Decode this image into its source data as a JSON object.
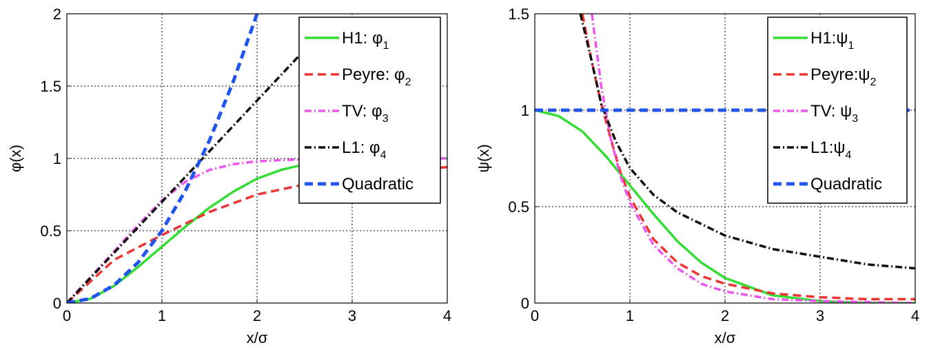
{
  "chart_data": [
    {
      "type": "line",
      "xlabel": "x/σ",
      "ylabel": "φ(x)",
      "xlim": [
        0,
        4
      ],
      "ylim": [
        0,
        2
      ],
      "xticks": [
        "0",
        "1",
        "2",
        "3",
        "4"
      ],
      "yticks": [
        "0",
        "0.5",
        "1",
        "1.5",
        "2"
      ],
      "grid": true,
      "legend_position": "top-right",
      "series": [
        {
          "name": "H1: φ",
          "sub": "1",
          "color": "#33dd33",
          "style": "solid",
          "x": [
            0,
            0.25,
            0.5,
            0.75,
            1,
            1.25,
            1.5,
            1.75,
            2,
            2.25,
            2.5,
            2.75,
            3,
            3.5,
            4
          ],
          "y": [
            0,
            0.03,
            0.12,
            0.25,
            0.39,
            0.53,
            0.66,
            0.77,
            0.86,
            0.92,
            0.96,
            0.98,
            0.99,
            1.0,
            1.0
          ]
        },
        {
          "name": "Peyre: φ",
          "sub": "2",
          "color": "#ee3333",
          "style": "dashed",
          "x": [
            0,
            0.5,
            1,
            1.5,
            2,
            2.5,
            3,
            3.5,
            4
          ],
          "y": [
            0,
            0.3,
            0.47,
            0.63,
            0.75,
            0.82,
            0.87,
            0.91,
            0.94
          ]
        },
        {
          "name": "TV: φ",
          "sub": "3",
          "color": "#ee55ee",
          "style": "dashdot",
          "x": [
            0,
            0.25,
            0.5,
            0.75,
            1,
            1.25,
            1.5,
            1.75,
            2,
            2.5,
            3,
            3.5,
            4
          ],
          "y": [
            0,
            0.18,
            0.36,
            0.54,
            0.71,
            0.84,
            0.92,
            0.96,
            0.98,
            0.995,
            1.0,
            1.0,
            1.0
          ]
        },
        {
          "name": "L1: φ",
          "sub": "4",
          "color": "#111111",
          "style": "dashdot",
          "x": [
            0,
            0.5,
            1,
            1.5,
            2,
            2.5,
            2.8
          ],
          "y": [
            0,
            0.35,
            0.7,
            1.05,
            1.4,
            1.75,
            1.96
          ]
        },
        {
          "name": "Quadratic",
          "sub": "",
          "color": "#2255ee",
          "style": "dashed",
          "x": [
            0,
            0.25,
            0.5,
            0.75,
            1,
            1.25,
            1.5,
            1.75,
            2
          ],
          "y": [
            0,
            0.03125,
            0.125,
            0.28125,
            0.5,
            0.78125,
            1.125,
            1.53125,
            2.0
          ]
        }
      ]
    },
    {
      "type": "line",
      "xlabel": "x/σ",
      "ylabel": "ψ(x)",
      "xlim": [
        0,
        4
      ],
      "ylim": [
        0,
        1.5
      ],
      "xticks": [
        "0",
        "1",
        "2",
        "3",
        "4"
      ],
      "yticks": [
        "0",
        "0.5",
        "1",
        "1.5"
      ],
      "grid": true,
      "legend_position": "top-right",
      "series": [
        {
          "name": "H1:ψ",
          "sub": "1",
          "color": "#33dd33",
          "style": "solid",
          "x": [
            0,
            0.25,
            0.5,
            0.75,
            1,
            1.25,
            1.5,
            1.75,
            2,
            2.5,
            3,
            3.5,
            4
          ],
          "y": [
            1.0,
            0.97,
            0.89,
            0.76,
            0.61,
            0.46,
            0.32,
            0.21,
            0.13,
            0.04,
            0.01,
            0.0,
            0.0
          ]
        },
        {
          "name": "Peyre:ψ",
          "sub": "2",
          "color": "#ee3333",
          "style": "dashed",
          "x": [
            0.5,
            0.6,
            0.7,
            0.8,
            0.9,
            1,
            1.25,
            1.5,
            1.75,
            2,
            2.5,
            3,
            3.5,
            4
          ],
          "y": [
            1.5,
            1.25,
            1.03,
            0.85,
            0.68,
            0.55,
            0.33,
            0.21,
            0.14,
            0.1,
            0.05,
            0.03,
            0.02,
            0.02
          ]
        },
        {
          "name": "TV: ψ",
          "sub": "3",
          "color": "#ee55ee",
          "style": "dashdot",
          "x": [
            0.6,
            0.7,
            0.8,
            0.9,
            1,
            1.25,
            1.5,
            1.75,
            2,
            2.5,
            3,
            4
          ],
          "y": [
            1.5,
            1.12,
            0.85,
            0.66,
            0.52,
            0.3,
            0.18,
            0.1,
            0.06,
            0.02,
            0.01,
            0.0
          ]
        },
        {
          "name": "L1:ψ",
          "sub": "4",
          "color": "#111111",
          "style": "dashdot",
          "x": [
            0.48,
            0.6,
            0.7,
            0.85,
            1,
            1.25,
            1.5,
            2,
            2.5,
            3,
            3.5,
            4
          ],
          "y": [
            1.5,
            1.25,
            1.03,
            0.84,
            0.7,
            0.56,
            0.47,
            0.35,
            0.28,
            0.24,
            0.2,
            0.18
          ]
        },
        {
          "name": "Quadratic",
          "sub": "",
          "color": "#2255ee",
          "style": "dashed",
          "x": [
            0,
            4
          ],
          "y": [
            1.0,
            1.0
          ]
        }
      ]
    }
  ]
}
